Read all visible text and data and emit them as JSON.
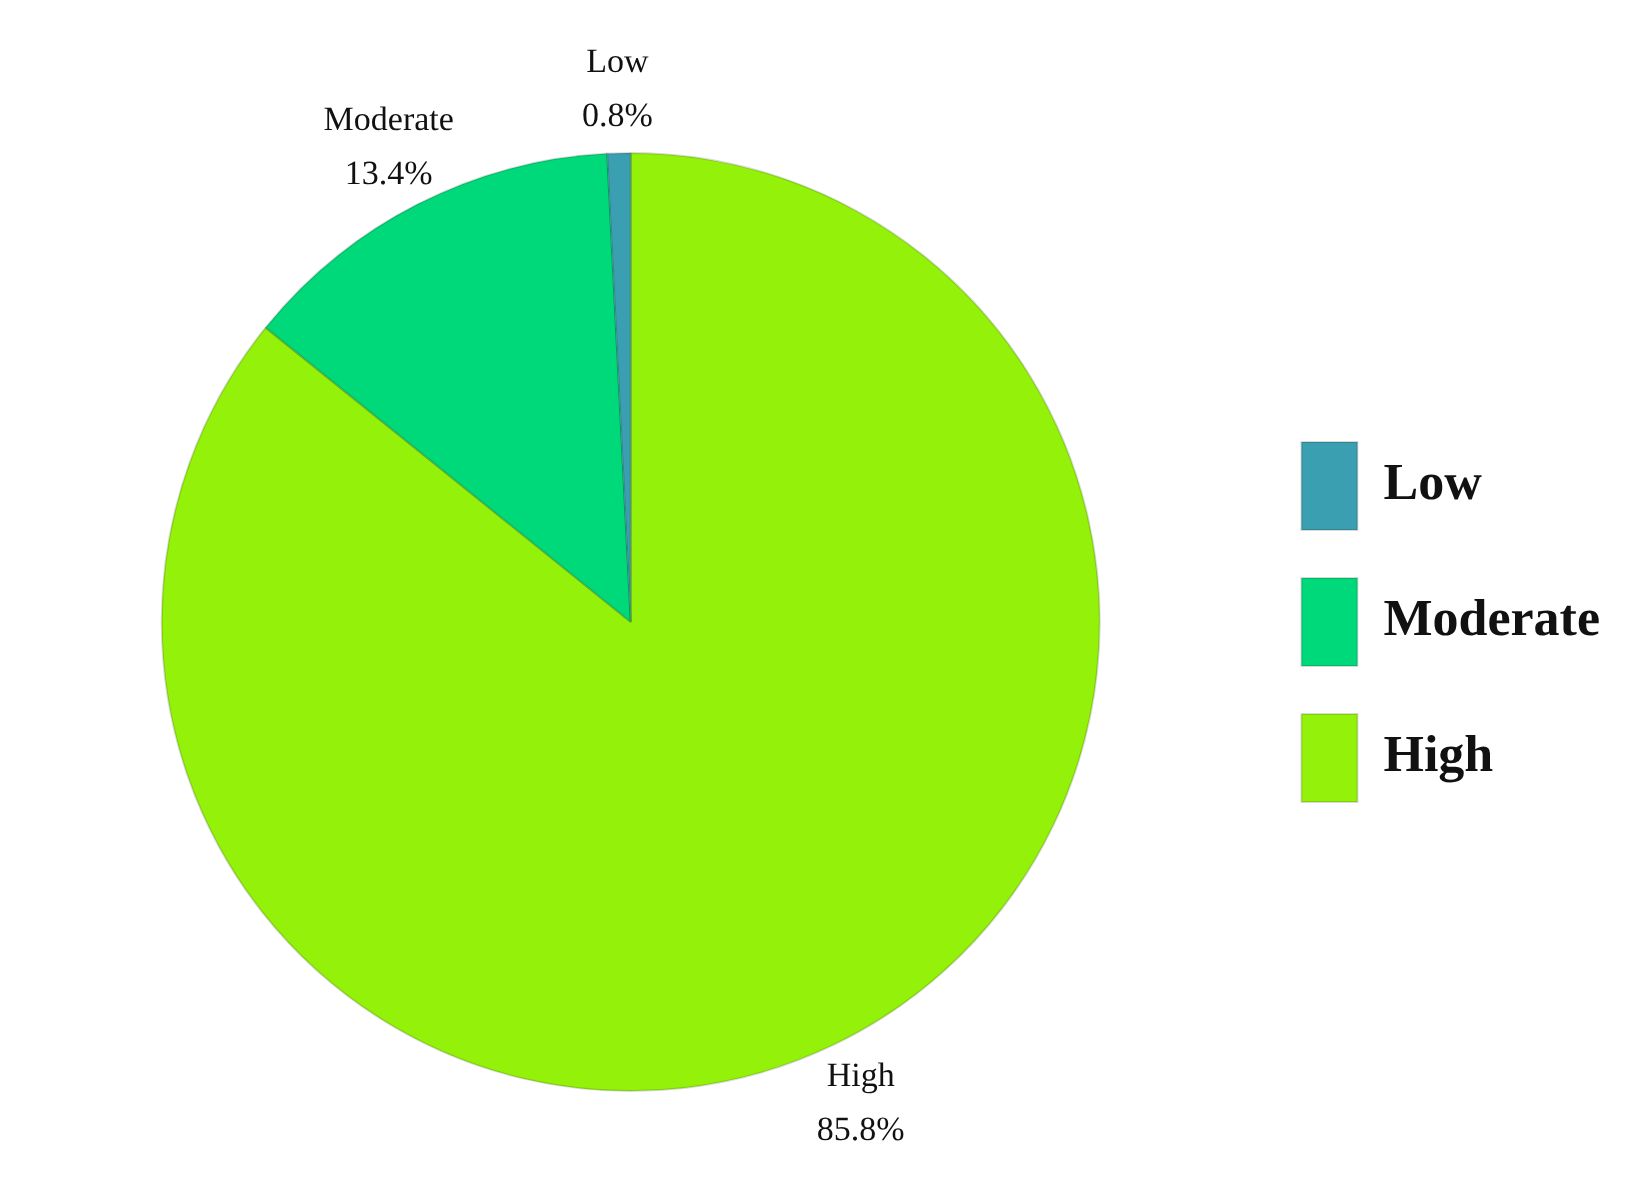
{
  "chart_data": {
    "type": "pie",
    "categories": [
      "High",
      "Moderate",
      "Low"
    ],
    "values": [
      85.8,
      13.4,
      0.8
    ],
    "value_labels": [
      "85.8%",
      "13.4%",
      "0.8%"
    ],
    "colors": [
      "#94f20a",
      "#00d97a",
      "#3a9fb0"
    ],
    "legend": "right"
  }
}
